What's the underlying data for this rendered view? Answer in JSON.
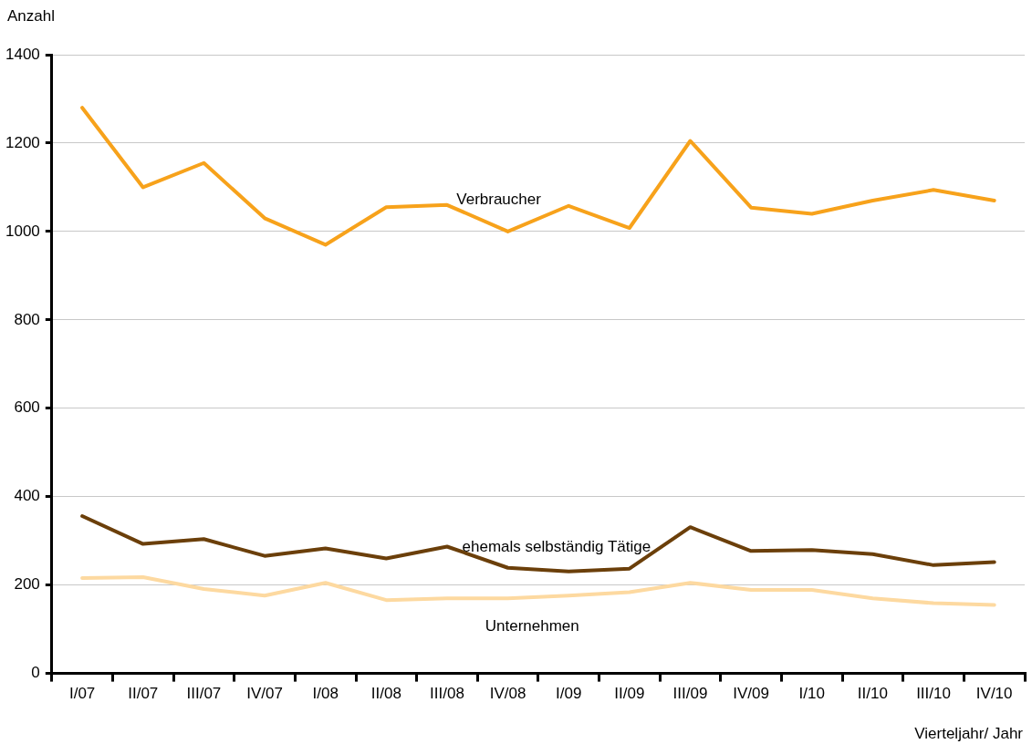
{
  "chart_data": {
    "type": "line",
    "ylabel": "Anzahl",
    "xlabel": "Vierteljahr/ Jahr",
    "categories": [
      "I/07",
      "II/07",
      "III/07",
      "IV/07",
      "I/08",
      "II/08",
      "III/08",
      "IV/08",
      "I/09",
      "II/09",
      "III/09",
      "IV/09",
      "I/10",
      "II/10",
      "III/10",
      "IV/10"
    ],
    "series": [
      {
        "name": "Verbraucher",
        "color": "#f7a21b",
        "values": [
          1280,
          1100,
          1155,
          1030,
          970,
          1055,
          1060,
          1000,
          1058,
          1008,
          1205,
          1054,
          1040,
          1070,
          1094,
          1070
        ]
      },
      {
        "name": "ehemals selbständig Tätige",
        "color": "#6b3f0a",
        "values": [
          356,
          293,
          304,
          266,
          283,
          260,
          287,
          239,
          231,
          237,
          331,
          277,
          279,
          270,
          245,
          252
        ]
      },
      {
        "name": "Unternehmen",
        "color": "#fdd9a0",
        "values": [
          216,
          218,
          191,
          176,
          205,
          166,
          170,
          170,
          176,
          184,
          205,
          189,
          189,
          170,
          159,
          155
        ]
      }
    ],
    "ylim": [
      0,
      1400
    ],
    "yticks": [
      0,
      200,
      400,
      600,
      800,
      1000,
      1200,
      1400
    ],
    "grid": "y",
    "legend": false,
    "marker": "none",
    "line_style": "solid"
  }
}
